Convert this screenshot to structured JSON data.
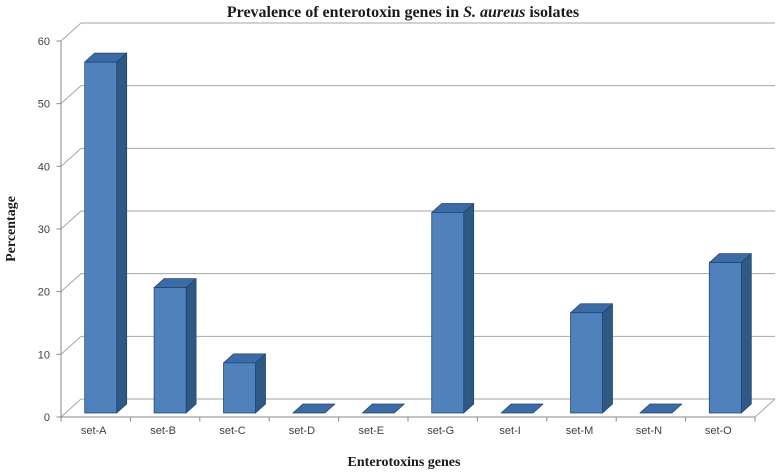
{
  "chart_data": {
    "type": "bar",
    "style": "3d-bar-excel",
    "title": "Prevalence of enterotoxin genes in S. aureus isolates",
    "title_prefix": "Prevalence of enterotoxin genes in ",
    "title_italic": "S. aureus",
    "title_suffix": " isolates",
    "xlabel": "Enterotoxins genes",
    "ylabel": "Percentage",
    "categories": [
      "set-A",
      "set-B",
      "set-C",
      "set-D",
      "set-E",
      "set-G",
      "set-I",
      "set-M",
      "set-N",
      "set-O"
    ],
    "values": [
      56,
      20,
      8,
      0,
      0,
      32,
      0,
      16,
      0,
      24
    ],
    "ylim": [
      0,
      60
    ],
    "yticks": [
      0,
      10,
      20,
      30,
      40,
      50,
      60
    ],
    "grid": true,
    "legend": "none",
    "colors": {
      "bar_front": "#4f81bd",
      "bar_top": "#3c6ba5",
      "bar_side": "#2e5984",
      "bar_outline": "#1f4470",
      "gridline": "#a6a6a6",
      "axis": "#898989",
      "tick_text": "#3f3f3f",
      "background": "#ffffff"
    }
  }
}
